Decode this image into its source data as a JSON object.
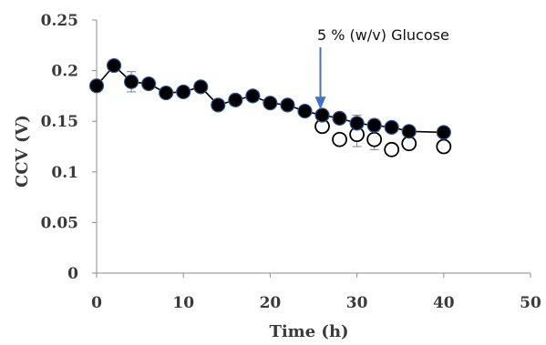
{
  "chart_data": {
    "type": "scatter",
    "title": "",
    "xlabel": "Time (h)",
    "ylabel": "CCV (V)",
    "xlim": [
      0,
      50
    ],
    "ylim": [
      0,
      0.25
    ],
    "x_ticks": [
      "0",
      "10",
      "20",
      "30",
      "40",
      "50"
    ],
    "y_ticks": [
      "0",
      "0.05",
      "0.1",
      "0.15",
      "0.2",
      "0.25"
    ],
    "grid": false,
    "legend": "none",
    "series": [
      {
        "marker": "filled-circle",
        "line": true,
        "color": "#000000",
        "points": [
          {
            "x": 0,
            "y": 0.185,
            "err": 0.003
          },
          {
            "x": 2,
            "y": 0.205,
            "err": 0.004
          },
          {
            "x": 4,
            "y": 0.189,
            "err": 0.01
          },
          {
            "x": 6,
            "y": 0.187,
            "err": 0.004
          },
          {
            "x": 8,
            "y": 0.178,
            "err": 0.003
          },
          {
            "x": 10,
            "y": 0.179,
            "err": 0.003
          },
          {
            "x": 12,
            "y": 0.184,
            "err": 0.005
          },
          {
            "x": 14,
            "y": 0.166,
            "err": 0.003
          },
          {
            "x": 16,
            "y": 0.171,
            "err": 0.003
          },
          {
            "x": 18,
            "y": 0.175,
            "err": 0.003
          },
          {
            "x": 20,
            "y": 0.168,
            "err": 0.003
          },
          {
            "x": 22,
            "y": 0.166,
            "err": 0.003
          },
          {
            "x": 24,
            "y": 0.16,
            "err": 0.003
          },
          {
            "x": 26,
            "y": 0.156,
            "err": 0.004
          },
          {
            "x": 28,
            "y": 0.153,
            "err": 0.004
          },
          {
            "x": 30,
            "y": 0.148,
            "err": 0.008
          },
          {
            "x": 32,
            "y": 0.146,
            "err": 0.006
          },
          {
            "x": 34,
            "y": 0.144,
            "err": 0.004
          },
          {
            "x": 36,
            "y": 0.14,
            "err": 0.004
          },
          {
            "x": 40,
            "y": 0.139,
            "err": 0.004
          }
        ]
      },
      {
        "marker": "open-circle",
        "line": false,
        "color": "#000000",
        "points": [
          {
            "x": 26,
            "y": 0.145,
            "err": 0.004
          },
          {
            "x": 28,
            "y": 0.132,
            "err": 0.005
          },
          {
            "x": 30,
            "y": 0.137,
            "err": 0.012
          },
          {
            "x": 32,
            "y": 0.132,
            "err": 0.01
          },
          {
            "x": 34,
            "y": 0.122,
            "err": 0.004
          },
          {
            "x": 36,
            "y": 0.128,
            "err": 0.004
          },
          {
            "x": 40,
            "y": 0.125,
            "err": 0.003
          }
        ]
      }
    ],
    "annotations": [
      {
        "text": "5 % (w/v) Glucose",
        "arrow_x": 26,
        "arrow_to_y": 0.158,
        "arrow_color": "#4472c4"
      }
    ]
  }
}
